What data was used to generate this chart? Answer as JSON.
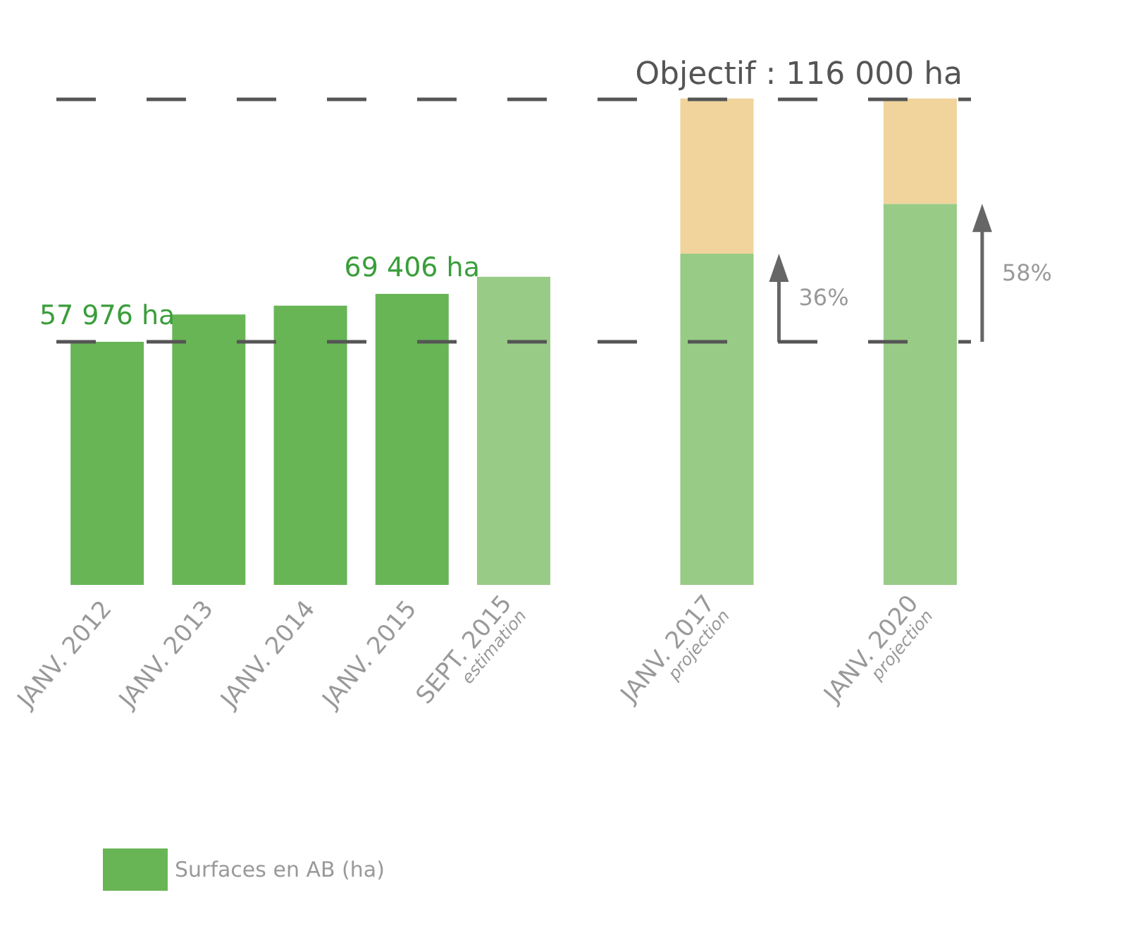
{
  "chart_data": {
    "type": "bar",
    "stacked": true,
    "tick_labels": "x",
    "legend": "bottom left",
    "categories": [
      "JANV. 2012",
      "JANV. 2013",
      "JANV. 2014",
      "JANV. 2015",
      "SEPT. 2015\nestimation",
      null,
      "JANV. 2017\nprojection",
      null,
      "JANV. 2020\nprojection"
    ],
    "series": [
      {
        "name": "Surfaces en AB (ha)",
        "color": "#68b556",
        "colors": [
          "#68b556",
          "#68b556",
          "#68b556",
          "#68b556",
          "#98cb86",
          null,
          "#98cb86",
          null,
          "#98cb86"
        ],
        "values": [
          57976,
          64500,
          66600,
          69406,
          73500,
          null,
          79000,
          null,
          90900
        ],
        "value_labels": [
          "57 976 ha",
          null,
          null,
          "69 406 ha",
          null,
          null,
          null,
          null,
          null
        ]
      },
      {
        "color": "#f0d49c",
        "values": [
          null,
          null,
          null,
          null,
          null,
          null,
          37000,
          null,
          25100
        ]
      }
    ],
    "ref_lines": [
      {
        "axis": "y",
        "value": 116000,
        "label": "Objectif : 116 000 ha",
        "color": "#555555",
        "line_style": "dashed"
      },
      {
        "axis": "y",
        "value": 57976,
        "color": "#555555",
        "line_style": "dashed"
      }
    ],
    "annotations": [
      "36%",
      "58%"
    ]
  }
}
